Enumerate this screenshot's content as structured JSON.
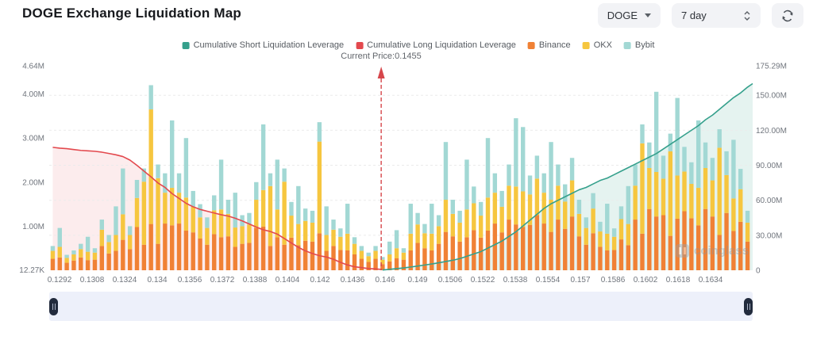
{
  "header": {
    "title": "DOGE Exchange Liquidation Map"
  },
  "controls": {
    "symbol": "DOGE",
    "period": "7 day"
  },
  "legend": [
    {
      "label": "Cumulative Short Liquidation Leverage",
      "color": "#35a08c"
    },
    {
      "label": "Cumulative Long Liquidation Leverage",
      "color": "#e3494e"
    },
    {
      "label": "Binance",
      "color": "#f08135"
    },
    {
      "label": "OKX",
      "color": "#f6c63f"
    },
    {
      "label": "Bybit",
      "color": "#a2d8d4"
    }
  ],
  "watermark": {
    "text": "coinglass"
  },
  "chart_data": {
    "type": "bar",
    "title": "DOGE Exchange Liquidation Map",
    "xlabel": "Price",
    "x_axis": {
      "tick_labels": [
        "0.1292",
        "0.1308",
        "0.1324",
        "0.134",
        "0.1356",
        "0.1372",
        "0.1388",
        "0.1404",
        "0.142",
        "0.1436",
        "0.146",
        "0.149",
        "0.1506",
        "0.1522",
        "0.1538",
        "0.1554",
        "0.157",
        "0.1586",
        "0.1602",
        "0.1618",
        "0.1634"
      ]
    },
    "y_axis_left": {
      "max": 4.64,
      "unit": "M",
      "ticks": [
        {
          "label": "4.64M",
          "value": 4.64
        },
        {
          "label": "4.00M",
          "value": 4.0
        },
        {
          "label": "3.00M",
          "value": 3.0
        },
        {
          "label": "2.00M",
          "value": 2.0
        },
        {
          "label": "1.00M",
          "value": 1.0
        },
        {
          "label": "12.27K",
          "value": 0.012
        }
      ]
    },
    "y_axis_right": {
      "max": 175.29,
      "unit": "M",
      "grid_values": [
        150,
        120,
        90,
        60,
        30
      ],
      "ticks": [
        {
          "label": "175.29M",
          "value": 175.29
        },
        {
          "label": "150.00M",
          "value": 150
        },
        {
          "label": "120.00M",
          "value": 120
        },
        {
          "label": "90.00M",
          "value": 90
        },
        {
          "label": "60.00M",
          "value": 60
        },
        {
          "label": "30.00M",
          "value": 30
        },
        {
          "label": "0",
          "value": 0
        }
      ]
    },
    "current_price": {
      "label": "Current Price:0.1455",
      "value": "0.1455",
      "x_fraction": 0.473,
      "color": "#d6464b"
    },
    "bars": {
      "names": [
        "Binance",
        "OKX",
        "Bybit"
      ],
      "colors": [
        "#f08135",
        "#f6c63f",
        "#a2d8d4"
      ],
      "unit": "M",
      "values": [
        [
          0.26,
          0.18,
          0.11
        ],
        [
          0.29,
          0.24,
          0.43
        ],
        [
          0.17,
          0.11,
          0.07
        ],
        [
          0.22,
          0.14,
          0.09
        ],
        [
          0.29,
          0.19,
          0.12
        ],
        [
          0.23,
          0.19,
          0.34
        ],
        [
          0.24,
          0.16,
          0.1
        ],
        [
          0.55,
          0.37,
          0.23
        ],
        [
          0.38,
          0.26,
          0.16
        ],
        [
          0.44,
          0.36,
          0.65
        ],
        [
          0.69,
          0.58,
          1.04
        ],
        [
          0.48,
          0.32,
          0.2
        ],
        [
          0.98,
          0.66,
          0.41
        ],
        [
          0.58,
          1.43,
          0.3
        ],
        [
          1.05,
          2.6,
          0.55
        ],
        [
          0.6,
          1.49,
          0.31
        ],
        [
          1.06,
          0.7,
          0.44
        ],
        [
          1.02,
          0.85,
          1.53
        ],
        [
          1.06,
          0.7,
          0.44
        ],
        [
          0.9,
          0.75,
          1.35
        ],
        [
          0.86,
          0.58,
          0.36
        ],
        [
          0.72,
          0.48,
          0.3
        ],
        [
          0.58,
          0.38,
          0.24
        ],
        [
          0.82,
          0.54,
          0.34
        ],
        [
          0.75,
          0.63,
          1.13
        ],
        [
          0.77,
          0.51,
          0.32
        ],
        [
          0.53,
          0.44,
          0.79
        ],
        [
          0.6,
          0.4,
          0.25
        ],
        [
          0.62,
          0.42,
          0.26
        ],
        [
          0.96,
          0.64,
          0.4
        ],
        [
          0.99,
          0.83,
          1.49
        ],
        [
          0.55,
          1.36,
          0.29
        ],
        [
          0.75,
          0.63,
          1.13
        ],
        [
          0.58,
          1.43,
          0.3
        ],
        [
          0.74,
          0.5,
          0.31
        ],
        [
          0.57,
          0.48,
          0.86
        ],
        [
          0.67,
          0.45,
          0.28
        ],
        [
          0.65,
          0.43,
          0.27
        ],
        [
          0.84,
          2.08,
          0.44
        ],
        [
          0.44,
          0.36,
          0.65
        ],
        [
          0.55,
          0.37,
          0.23
        ],
        [
          0.46,
          0.3,
          0.19
        ],
        [
          0.45,
          0.38,
          0.68
        ],
        [
          0.36,
          0.24,
          0.15
        ],
        [
          0.26,
          0.18,
          0.11
        ],
        [
          0.19,
          0.13,
          0.08
        ],
        [
          0.26,
          0.18,
          0.11
        ],
        [
          0.14,
          0.1,
          0.06
        ],
        [
          0.2,
          0.16,
          0.29
        ],
        [
          0.27,
          0.23,
          0.41
        ],
        [
          0.24,
          0.16,
          0.1
        ],
        [
          0.45,
          0.38,
          0.68
        ],
        [
          0.62,
          0.42,
          0.26
        ],
        [
          0.5,
          0.34,
          0.21
        ],
        [
          0.45,
          0.38,
          0.68
        ],
        [
          0.6,
          0.4,
          0.25
        ],
        [
          0.87,
          0.73,
          1.31
        ],
        [
          0.77,
          0.51,
          0.32
        ],
        [
          0.65,
          0.43,
          0.27
        ],
        [
          0.75,
          0.63,
          1.13
        ],
        [
          0.91,
          0.61,
          0.38
        ],
        [
          0.74,
          0.5,
          0.31
        ],
        [
          0.9,
          0.75,
          1.35
        ],
        [
          1.06,
          0.7,
          0.44
        ],
        [
          0.86,
          0.58,
          0.36
        ],
        [
          1.15,
          0.77,
          0.48
        ],
        [
          1.04,
          0.86,
          1.55
        ],
        [
          0.98,
          0.81,
          1.46
        ],
        [
          1.03,
          0.69,
          0.43
        ],
        [
          1.25,
          0.83,
          0.52
        ],
        [
          1.06,
          0.7,
          0.44
        ],
        [
          0.87,
          0.73,
          1.31
        ],
        [
          1.15,
          0.77,
          0.48
        ],
        [
          0.94,
          0.62,
          0.39
        ],
        [
          1.22,
          0.82,
          0.51
        ],
        [
          0.77,
          0.51,
          0.32
        ],
        [
          0.58,
          0.38,
          0.24
        ],
        [
          0.84,
          0.56,
          0.35
        ],
        [
          0.53,
          0.35,
          0.22
        ],
        [
          0.45,
          0.38,
          0.68
        ],
        [
          0.46,
          0.3,
          0.19
        ],
        [
          0.7,
          0.46,
          0.29
        ],
        [
          0.57,
          0.48,
          0.86
        ],
        [
          1.15,
          0.77,
          0.48
        ],
        [
          0.83,
          2.05,
          0.43
        ],
        [
          1.39,
          0.93,
          0.58
        ],
        [
          1.22,
          1.01,
          1.82
        ],
        [
          1.25,
          0.83,
          0.52
        ],
        [
          0.78,
          1.92,
          0.4
        ],
        [
          1.17,
          0.98,
          1.76
        ],
        [
          1.34,
          0.9,
          0.56
        ],
        [
          1.18,
          0.78,
          0.49
        ],
        [
          1.02,
          0.85,
          1.53
        ],
        [
          1.39,
          0.93,
          0.58
        ],
        [
          1.22,
          0.82,
          0.51
        ],
        [
          0.8,
          1.98,
          0.42
        ],
        [
          1.3,
          0.86,
          0.54
        ],
        [
          0.89,
          0.74,
          1.33
        ],
        [
          1.1,
          0.74,
          0.46
        ],
        [
          0.65,
          0.43,
          0.27
        ]
      ]
    },
    "long_line": {
      "name": "Cumulative Long Liquidation Leverage",
      "color": "#e3494e",
      "fill": "rgba(227,73,78,0.10)",
      "axis": "left",
      "unit": "M",
      "start_index": 0,
      "edge_value": 0.02,
      "values": [
        2.79,
        2.77,
        2.76,
        2.74,
        2.72,
        2.71,
        2.7,
        2.68,
        2.65,
        2.62,
        2.58,
        2.5,
        2.38,
        2.25,
        2.12,
        1.98,
        1.88,
        1.74,
        1.63,
        1.52,
        1.44,
        1.38,
        1.34,
        1.3,
        1.26,
        1.23,
        1.18,
        1.12,
        1.05,
        0.98,
        0.92,
        0.88,
        0.82,
        0.72,
        0.62,
        0.52,
        0.44,
        0.38,
        0.33,
        0.3,
        0.25,
        0.18,
        0.12,
        0.08,
        0.06,
        0.04,
        0.03
      ]
    },
    "short_line": {
      "name": "Cumulative Short Liquidation Leverage",
      "color": "#35a08c",
      "fill": "rgba(53,160,140,0.13)",
      "axis": "right",
      "unit": "M",
      "start_index": 47,
      "edge_value": 160,
      "values": [
        0.2,
        0.8,
        1.4,
        2.0,
        2.8,
        3.6,
        4.5,
        5.4,
        6.4,
        7.5,
        8.6,
        10,
        12,
        14,
        16,
        19,
        22,
        25,
        29,
        33,
        38,
        43,
        48,
        53,
        57,
        60,
        63,
        66,
        69,
        71,
        74,
        77,
        79,
        82,
        85,
        88,
        91,
        94,
        97,
        100,
        104,
        108,
        112,
        116,
        120,
        124,
        129,
        133,
        138,
        143,
        148,
        152,
        157
      ]
    }
  }
}
